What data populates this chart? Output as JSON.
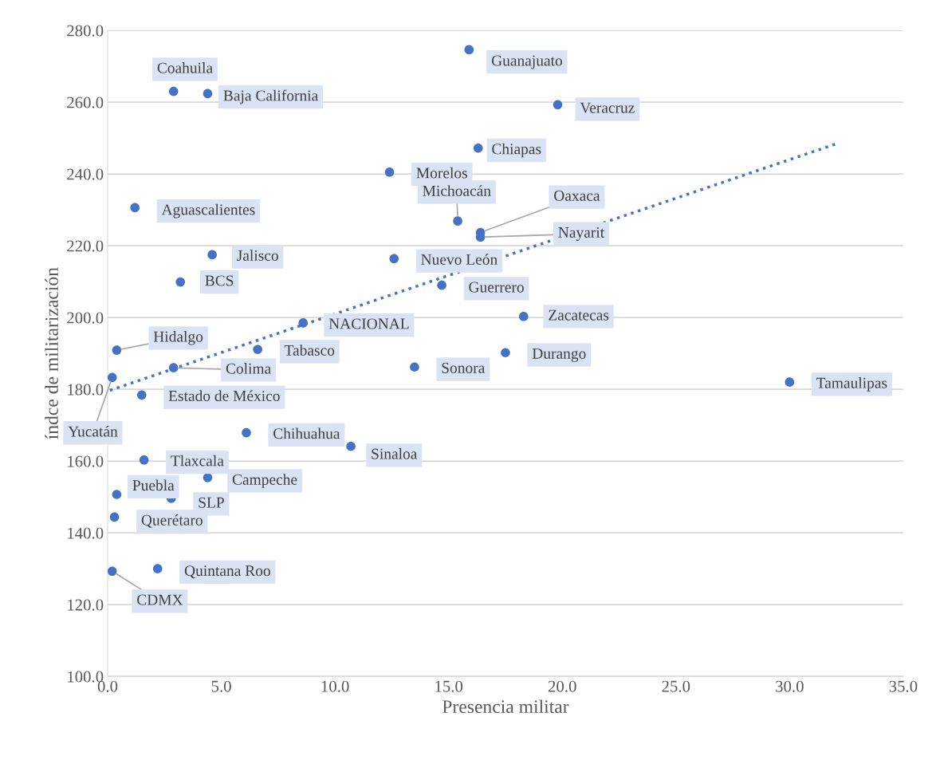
{
  "chart_data": {
    "type": "scatter",
    "xlabel": "Presencia militar",
    "ylabel": "índce de militarización",
    "xlim": [
      0,
      35
    ],
    "xticks": [
      {
        "value": 0,
        "label": "0.0"
      },
      {
        "value": 5,
        "label": "5.0"
      },
      {
        "value": 10,
        "label": "10.0"
      },
      {
        "value": 15,
        "label": "15.0"
      },
      {
        "value": 20,
        "label": "20.0"
      },
      {
        "value": 25,
        "label": "25.0"
      },
      {
        "value": 30,
        "label": "30.0"
      },
      {
        "value": 35,
        "label": "35.0"
      }
    ],
    "ylim": [
      100,
      280
    ],
    "yticks": [
      {
        "value": 100,
        "label": "100.0"
      },
      {
        "value": 120,
        "label": "120.0"
      },
      {
        "value": 140,
        "label": "140.0"
      },
      {
        "value": 160,
        "label": "160.0"
      },
      {
        "value": 180,
        "label": "180.0"
      },
      {
        "value": 200,
        "label": "200.0"
      },
      {
        "value": 220,
        "label": "220.0"
      },
      {
        "value": 240,
        "label": "240.0"
      },
      {
        "value": 260,
        "label": "260.0"
      },
      {
        "value": 280,
        "label": "280.0"
      }
    ],
    "grid": "y",
    "legend": false,
    "marker": "circle",
    "series": [
      {
        "color": "#4472c4",
        "x": [
          15.9,
          2.9,
          4.4,
          19.8,
          16.3,
          12.4,
          1.2,
          15.4,
          16.4,
          16.4,
          4.6,
          12.6,
          3.2,
          14.7,
          8.6,
          18.3,
          0.4,
          6.6,
          2.9,
          17.5,
          13.5,
          30.0,
          0.2,
          1.5,
          6.1,
          10.7,
          1.6,
          4.4,
          0.4,
          2.8,
          0.3,
          2.2,
          0.2
        ],
        "values": [
          274.6,
          263.0,
          262.4,
          259.3,
          247.2,
          240.5,
          230.6,
          226.9,
          223.7,
          222.4,
          217.5,
          216.4,
          209.9,
          209.0,
          198.5,
          200.3,
          190.9,
          191.1,
          186.0,
          190.2,
          186.2,
          182.0,
          183.3,
          178.4,
          167.9,
          164.1,
          160.3,
          155.4,
          150.7,
          149.6,
          144.4,
          130.0,
          129.3
        ],
        "value_labels": [
          "Guanajuato",
          "Coahuila",
          "Baja California",
          "Veracruz",
          "Chiapas",
          "Morelos",
          "Aguascalientes",
          "Michoacán",
          "Oaxaca",
          "Nayarit",
          "Jalisco",
          "Nuevo León",
          "BCS",
          "Guerrero",
          "NACIONAL",
          "Zacatecas",
          "Hidalgo",
          "Tabasco",
          "Colima",
          "Durango",
          "Sonora",
          "Tamaulipas",
          "Yucatán",
          "Estado de México",
          "Chihuahua",
          "Sinaloa",
          "Tlaxcala",
          "Campeche",
          "Puebla",
          "SLP",
          "Querétaro",
          "Quintana Roo",
          "CDMX"
        ]
      },
      {
        "type": "line",
        "color": "#4472c4",
        "line_style": "dotted",
        "marker": "none",
        "x": [
          0.1,
          32.1
        ],
        "values": [
          179.7,
          248.5
        ]
      }
    ]
  }
}
